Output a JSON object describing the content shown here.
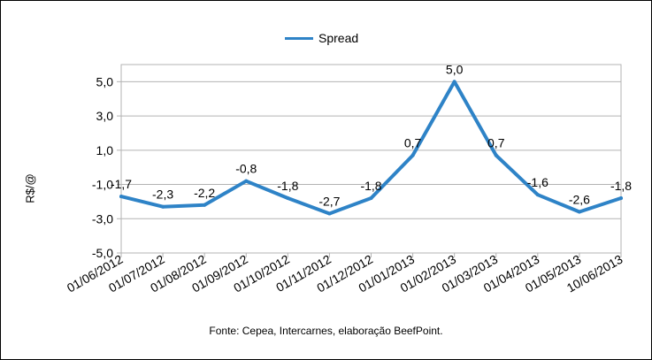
{
  "chart_data": {
    "type": "line",
    "categories": [
      "01/06/2012",
      "01/07/2012",
      "01/08/2012",
      "01/09/2012",
      "01/10/2012",
      "01/11/2012",
      "01/12/2012",
      "01/01/2013",
      "01/02/2013",
      "01/03/2013",
      "01/04/2013",
      "01/05/2013",
      "10/06/2013"
    ],
    "series": [
      {
        "name": "Spread",
        "values": [
          -1.7,
          -2.3,
          -2.2,
          -0.8,
          -1.8,
          -2.7,
          -1.8,
          0.7,
          5.0,
          0.7,
          -1.6,
          -2.6,
          -1.8
        ],
        "labels": [
          "-1,7",
          "-2,3",
          "-2,2",
          "-0,8",
          "-1,8",
          "-2,7",
          "-1,8",
          "0,7",
          "5,0",
          "0,7",
          "-1,6",
          "-2,6",
          "-1,8"
        ],
        "color": "#2e83c7"
      }
    ],
    "ylabel": "R$/@",
    "ylim": [
      -5,
      6
    ],
    "yticks": [
      -5,
      -3,
      -1,
      1,
      3,
      5
    ],
    "ytick_labels": [
      "-5,0",
      "-3,0",
      "-1,0",
      "1,0",
      "3,0",
      "5,0"
    ],
    "grid": true,
    "legend_position": "top-center",
    "source": "Fonte: Cepea, Intercarnes, elaboração BeefPoint."
  }
}
